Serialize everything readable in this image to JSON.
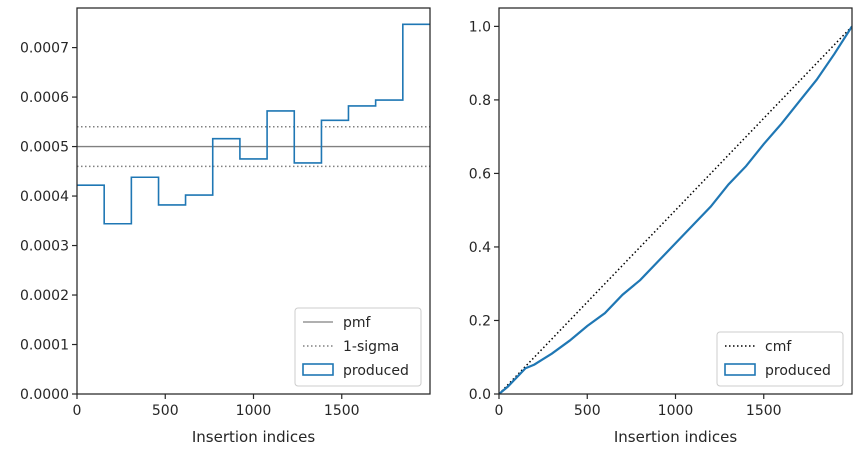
{
  "chart_data": [
    {
      "type": "line",
      "xlabel": "Insertion indices",
      "ylabel": "",
      "xlim": [
        0,
        2000
      ],
      "ylim": [
        0,
        0.00078
      ],
      "xticks": [
        0,
        500,
        1000,
        1500
      ],
      "xtick_labels": [
        "0",
        "500",
        "1000",
        "1500"
      ],
      "yticks": [
        0,
        0.0001,
        0.0002,
        0.0003,
        0.0004,
        0.0005,
        0.0006,
        0.0007
      ],
      "ytick_labels": [
        "0.0000",
        "0.0001",
        "0.0002",
        "0.0003",
        "0.0004",
        "0.0005",
        "0.0006",
        "0.0007"
      ],
      "grid": false,
      "legend_position": "lower right",
      "legend": [
        "pmf",
        "1-sigma",
        "produced"
      ],
      "series": [
        {
          "name": "pmf",
          "style": "solid",
          "color": "#808080",
          "y": 0.0005
        },
        {
          "name": "1-sigma",
          "style": "dotted",
          "color": "#808080",
          "y": [
            0.00046,
            0.00054
          ]
        },
        {
          "name": "produced",
          "style": "step-histogram",
          "color": "#1f77b4",
          "bin_edges": [
            0,
            154,
            308,
            462,
            615,
            769,
            923,
            1077,
            1231,
            1385,
            1538,
            1692,
            1846,
            2000
          ],
          "values": [
            0.000422,
            0.000344,
            0.000438,
            0.000382,
            0.000402,
            0.000516,
            0.000475,
            0.000572,
            0.000467,
            0.000553,
            0.000582,
            0.000594,
            0.000747
          ]
        }
      ]
    },
    {
      "type": "line",
      "xlabel": "Insertion indices",
      "ylabel": "",
      "xlim": [
        0,
        2000
      ],
      "ylim": [
        0,
        1.05
      ],
      "xticks": [
        0,
        500,
        1000,
        1500
      ],
      "xtick_labels": [
        "0",
        "500",
        "1000",
        "1500"
      ],
      "yticks": [
        0,
        0.2,
        0.4,
        0.6,
        0.8,
        1.0
      ],
      "ytick_labels": [
        "0.0",
        "0.2",
        "0.4",
        "0.6",
        "0.8",
        "1.0"
      ],
      "grid": false,
      "legend_position": "lower right",
      "legend": [
        "cmf",
        "produced"
      ],
      "series": [
        {
          "name": "cmf",
          "style": "dotted",
          "color": "#000000",
          "x": [
            0,
            2000
          ],
          "y": [
            0,
            1.0
          ]
        },
        {
          "name": "produced",
          "style": "solid",
          "color": "#1f77b4",
          "x": [
            0,
            50,
            100,
            150,
            200,
            250,
            300,
            400,
            500,
            600,
            700,
            800,
            900,
            1000,
            1100,
            1200,
            1300,
            1400,
            1500,
            1600,
            1700,
            1800,
            1900,
            2000
          ],
          "y": [
            0,
            0.02,
            0.045,
            0.07,
            0.08,
            0.095,
            0.11,
            0.145,
            0.185,
            0.22,
            0.27,
            0.31,
            0.36,
            0.41,
            0.46,
            0.51,
            0.57,
            0.62,
            0.68,
            0.735,
            0.795,
            0.855,
            0.925,
            1.0
          ]
        }
      ]
    }
  ]
}
